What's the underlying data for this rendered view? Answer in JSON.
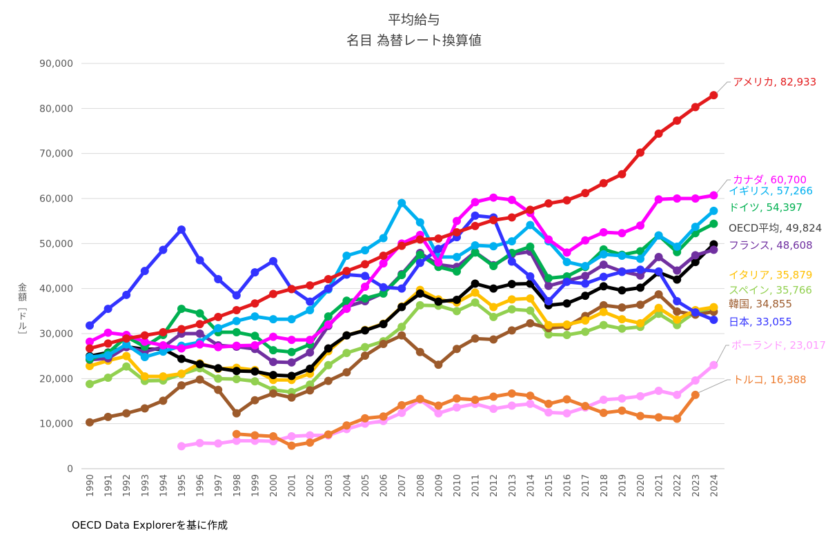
{
  "chart_data": {
    "type": "line",
    "title": "平均給与",
    "subtitle": "名目 為替レート換算値",
    "ylabel": "金額［ドル］",
    "xlabel": "",
    "ylim": [
      0,
      90000
    ],
    "yticks": [
      "0",
      "10,000",
      "20,000",
      "30,000",
      "40,000",
      "50,000",
      "60,000",
      "70,000",
      "80,000",
      "90,000"
    ],
    "categories": [
      "1990",
      "1991",
      "1992",
      "1993",
      "1994",
      "1995",
      "1996",
      "1997",
      "1998",
      "1999",
      "2000",
      "2001",
      "2002",
      "2003",
      "2004",
      "2005",
      "2006",
      "2007",
      "2008",
      "2009",
      "2010",
      "2011",
      "2012",
      "2013",
      "2014",
      "2015",
      "2016",
      "2017",
      "2018",
      "2019",
      "2020",
      "2021",
      "2022",
      "2023",
      "2024"
    ],
    "series": [
      {
        "name": "スペイン",
        "label": "スペイン, 35,766",
        "color": "#92d050",
        "values": [
          18800,
          20200,
          22700,
          19500,
          19600,
          21000,
          22300,
          20000,
          19900,
          19400,
          17500,
          17000,
          18700,
          23000,
          25700,
          27000,
          28300,
          31500,
          36300,
          36200,
          35000,
          36900,
          33700,
          35400,
          35100,
          29800,
          29700,
          30400,
          31900,
          31100,
          31500,
          34400,
          31900,
          34800,
          35766
        ]
      },
      {
        "name": "ポーランド",
        "label": "ポーランド, 23,017",
        "color": "#ff99ff",
        "values": [
          null,
          null,
          null,
          null,
          null,
          5000,
          5700,
          5600,
          6200,
          6200,
          6100,
          7200,
          7400,
          7400,
          8800,
          10000,
          10600,
          12400,
          15300,
          12300,
          13600,
          14400,
          13300,
          14000,
          14400,
          12500,
          12300,
          13600,
          15300,
          15600,
          16100,
          17300,
          16400,
          19600,
          23017
        ]
      },
      {
        "name": "トルコ",
        "label": "トルコ, 16,388",
        "color": "#ed7d31",
        "values": [
          null,
          null,
          null,
          null,
          null,
          null,
          null,
          null,
          7700,
          7400,
          7200,
          5100,
          5800,
          7600,
          9600,
          11200,
          11600,
          14100,
          15500,
          14000,
          15600,
          15300,
          16000,
          16700,
          16200,
          14400,
          15400,
          13900,
          12400,
          12900,
          11700,
          11400,
          11100,
          16388,
          null
        ]
      },
      {
        "name": "韓国",
        "label": "韓国, 34,855",
        "color": "#9c5a2b",
        "values": [
          10300,
          11500,
          12300,
          13400,
          15100,
          18500,
          19800,
          17500,
          12300,
          15200,
          16700,
          15800,
          17400,
          19500,
          21400,
          25100,
          27700,
          29600,
          25900,
          23100,
          26600,
          28900,
          28700,
          30700,
          32300,
          31200,
          31600,
          33900,
          36300,
          35800,
          36400,
          38700,
          34900,
          34200,
          34855
        ]
      },
      {
        "name": "イタリア",
        "label": "イタリア, 35,879",
        "color": "#ffc000",
        "values": [
          22800,
          24000,
          25000,
          20500,
          20500,
          21100,
          23400,
          22200,
          22400,
          21900,
          19700,
          19700,
          21100,
          26100,
          29600,
          30800,
          32200,
          36000,
          39700,
          37600,
          36900,
          39100,
          35900,
          37600,
          37800,
          31900,
          32000,
          32900,
          34800,
          33200,
          32300,
          35700,
          33100,
          35200,
          35879
        ]
      },
      {
        "name": "OECD平均",
        "label": "OECD平均, 49,824",
        "color": "#000000",
        "values": [
          25000,
          25800,
          27100,
          26500,
          26600,
          24400,
          23200,
          22300,
          21700,
          21600,
          20800,
          20600,
          22200,
          26700,
          29600,
          30700,
          32100,
          35900,
          38900,
          37100,
          37500,
          41100,
          40000,
          41000,
          41100,
          36300,
          36700,
          38400,
          40500,
          39600,
          40200,
          43600,
          42000,
          45900,
          49824
        ]
      },
      {
        "name": "フランス",
        "label": "フランス, 48,608",
        "color": "#7030a0",
        "values": [
          24200,
          24500,
          27000,
          26000,
          27000,
          30000,
          30000,
          27400,
          27100,
          26600,
          23700,
          23600,
          25800,
          31700,
          36000,
          37200,
          39000,
          43200,
          47900,
          45300,
          44800,
          48100,
          45200,
          47600,
          48200,
          40600,
          41700,
          42800,
          45300,
          43800,
          42900,
          47000,
          44000,
          47400,
          48608
        ]
      },
      {
        "name": "ドイツ",
        "label": "ドイツ, 54,397",
        "color": "#00b050",
        "values": [
          24300,
          25700,
          29300,
          27100,
          29700,
          35500,
          34500,
          30300,
          30300,
          29500,
          26300,
          25900,
          27600,
          33800,
          37300,
          37800,
          38900,
          43000,
          47500,
          44800,
          43800,
          48000,
          45000,
          47900,
          49300,
          42300,
          42700,
          44800,
          48700,
          47500,
          48300,
          51800,
          48100,
          52300,
          54397
        ]
      },
      {
        "name": "イギリス",
        "label": "イギリス, 57,266",
        "color": "#00b0f0",
        "values": [
          24800,
          25200,
          27600,
          24800,
          26000,
          27300,
          28100,
          31200,
          32800,
          33800,
          33200,
          33200,
          35200,
          39800,
          47300,
          48500,
          51200,
          59000,
          54700,
          47000,
          47000,
          49600,
          49400,
          50500,
          54100,
          50500,
          45900,
          45000,
          47600,
          47300,
          46600,
          51800,
          49300,
          53700,
          57266
        ]
      },
      {
        "name": "日本",
        "label": "日本, 33,055",
        "color": "#3333ff",
        "values": [
          31800,
          35500,
          38600,
          43900,
          48600,
          53100,
          46300,
          42100,
          38500,
          43600,
          46100,
          39900,
          37100,
          40000,
          43100,
          42800,
          40300,
          40000,
          45700,
          48800,
          51400,
          56200,
          55800,
          46000,
          42700,
          37200,
          41500,
          41100,
          42600,
          43700,
          44200,
          43800,
          37200,
          34700,
          33055
        ]
      },
      {
        "name": "カナダ",
        "label": "カナダ, 60,700",
        "color": "#ff00ff",
        "values": [
          28200,
          30200,
          29700,
          28200,
          27400,
          26700,
          27600,
          27000,
          27300,
          27400,
          29300,
          28600,
          28600,
          32000,
          35500,
          40400,
          45600,
          50000,
          51900,
          45800,
          55000,
          59200,
          60200,
          59700,
          56800,
          50900,
          48000,
          50700,
          52500,
          52300,
          54000,
          59800,
          60000,
          60000,
          60700
        ]
      },
      {
        "name": "アメリカ",
        "label": "アメリカ, 82,933",
        "color": "#e31a1c",
        "values": [
          26700,
          27800,
          28900,
          29600,
          30300,
          31000,
          32100,
          33700,
          35200,
          36700,
          38800,
          39900,
          40700,
          42100,
          43900,
          45400,
          47300,
          49500,
          50900,
          51100,
          52500,
          53900,
          55200,
          55800,
          57500,
          58900,
          59600,
          61200,
          63400,
          65400,
          70200,
          74400,
          77300,
          80300,
          82933
        ]
      }
    ],
    "source": "OECD Data Explorerを基に作成"
  }
}
